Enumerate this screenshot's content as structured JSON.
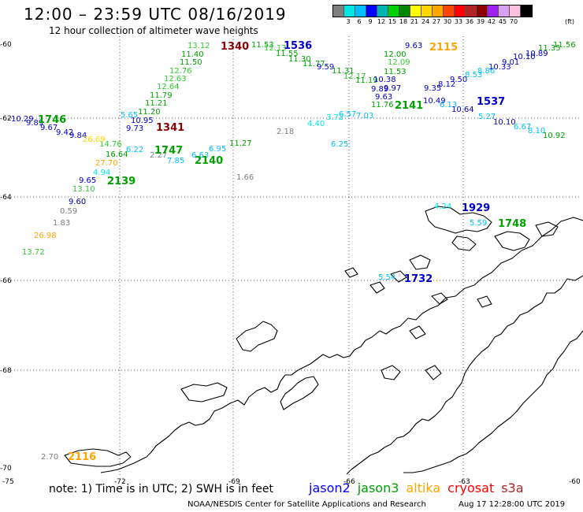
{
  "title": "12:00 – 23:59 UTC 08/16/2019",
  "subtitle": "12 hour collection of altimeter wave heights",
  "colorbar": {
    "colors": [
      "#7f7f7f",
      "#00e6e6",
      "#00bfff",
      "#0000ff",
      "#00b3b3",
      "#00d000",
      "#008800",
      "#ffff00",
      "#ffd700",
      "#ffa500",
      "#ff4500",
      "#ff0000",
      "#b22222",
      "#8b0000",
      "#a020f0",
      "#d8a0f0",
      "#ffc0e0",
      "#000000"
    ],
    "ticks": [
      "3",
      "6",
      "9",
      "12",
      "15",
      "18",
      "21",
      "24",
      "27",
      "30",
      "33",
      "36",
      "39",
      "42",
      "45",
      "70"
    ],
    "unit": "(ft)"
  },
  "axes": {
    "lat_labels": [
      "-60",
      "-62",
      "-64",
      "-66",
      "-68",
      "-70"
    ],
    "lon_labels": [
      "-75",
      "-72",
      "-69",
      "-66",
      "-63",
      "-60"
    ]
  },
  "observations": [
    {
      "t": "13.12",
      "c": "#2ecc2e"
    },
    {
      "t": "11.40",
      "c": "#00a000"
    },
    {
      "t": "11.50",
      "c": "#00a000"
    },
    {
      "t": "12.76",
      "c": "#2ecc2e"
    },
    {
      "t": "12.63",
      "c": "#2ecc2e"
    },
    {
      "t": "12.64",
      "c": "#2ecc2e"
    },
    {
      "t": "11.79",
      "c": "#00a000"
    },
    {
      "t": "11.21",
      "c": "#00a000"
    },
    {
      "t": "11.20",
      "c": "#00a000"
    },
    {
      "t": "10.95",
      "c": "#0000cc"
    },
    {
      "t": "9.73",
      "c": "#0000cc"
    },
    {
      "t": "5.65",
      "c": "#00bfff"
    },
    {
      "t": "6.22",
      "c": "#00bfff"
    },
    {
      "t": "14.76",
      "c": "#2ecc2e"
    },
    {
      "t": "16.64",
      "c": "#00a000"
    },
    {
      "t": "2.27",
      "c": "#7f7f7f"
    },
    {
      "t": "7.85",
      "c": "#00bfff"
    },
    {
      "t": "6.63",
      "c": "#00bfff"
    },
    {
      "t": "6.95",
      "c": "#00bfff"
    },
    {
      "t": "11.27",
      "c": "#00a000"
    },
    {
      "t": "10.29",
      "c": "#0000cc"
    },
    {
      "t": "9.89",
      "c": "#0000cc"
    },
    {
      "t": "9.67",
      "c": "#0000cc"
    },
    {
      "t": "9.42",
      "c": "#0000cc"
    },
    {
      "t": "9.84",
      "c": "#0000cc"
    },
    {
      "t": "26.69",
      "c": "#ffd700"
    },
    {
      "t": "27.70",
      "c": "#ffa500"
    },
    {
      "t": "4.94",
      "c": "#00e6e6"
    },
    {
      "t": "9.65",
      "c": "#0000cc"
    },
    {
      "t": "13.10",
      "c": "#2ecc2e"
    },
    {
      "t": "9.60",
      "c": "#0000cc"
    },
    {
      "t": "0.59",
      "c": "#7f7f7f"
    },
    {
      "t": "1.83",
      "c": "#7f7f7f"
    },
    {
      "t": "26.98",
      "c": "#ffa500"
    },
    {
      "t": "13.72",
      "c": "#2ecc2e"
    },
    {
      "t": "11.53",
      "c": "#00a000"
    },
    {
      "t": "12.13",
      "c": "#2ecc2e"
    },
    {
      "t": "11.55",
      "c": "#00a000"
    },
    {
      "t": "11.30",
      "c": "#00a000"
    },
    {
      "t": "11.77",
      "c": "#00a000"
    },
    {
      "t": "9.59",
      "c": "#0000cc"
    },
    {
      "t": "11.31",
      "c": "#00a000"
    },
    {
      "t": "12.17",
      "c": "#2ecc2e"
    },
    {
      "t": "11.19",
      "c": "#00a000"
    },
    {
      "t": "10.38",
      "c": "#0000cc"
    },
    {
      "t": "9.89",
      "c": "#0000cc"
    },
    {
      "t": "9.97",
      "c": "#0000cc"
    },
    {
      "t": "9.63",
      "c": "#0000cc"
    },
    {
      "t": "11.76",
      "c": "#00a000"
    },
    {
      "t": "6.57",
      "c": "#00bfff"
    },
    {
      "t": "7.03",
      "c": "#00bfff"
    },
    {
      "t": "3.72",
      "c": "#00e6e6"
    },
    {
      "t": "4.40",
      "c": "#00e6e6"
    },
    {
      "t": "2.18",
      "c": "#7f7f7f"
    },
    {
      "t": "1.66",
      "c": "#7f7f7f"
    },
    {
      "t": "6.25",
      "c": "#00bfff"
    },
    {
      "t": "9.63",
      "c": "#0000cc"
    },
    {
      "t": "12.00",
      "c": "#00a000"
    },
    {
      "t": "12.09",
      "c": "#2ecc2e"
    },
    {
      "t": "11.53",
      "c": "#00a000"
    },
    {
      "t": "9.35",
      "c": "#0000cc"
    },
    {
      "t": "8.12",
      "c": "#0000cc"
    },
    {
      "t": "9.50",
      "c": "#0000cc"
    },
    {
      "t": "8.53",
      "c": "#00bfff"
    },
    {
      "t": "8.86",
      "c": "#00bfff"
    },
    {
      "t": "10.33",
      "c": "#0000cc"
    },
    {
      "t": "9.01",
      "c": "#0000cc"
    },
    {
      "t": "10.10",
      "c": "#0000cc"
    },
    {
      "t": "10.89",
      "c": "#0000cc"
    },
    {
      "t": "11.35",
      "c": "#00a000"
    },
    {
      "t": "11.56",
      "c": "#00a000"
    },
    {
      "t": "10.49",
      "c": "#0000cc"
    },
    {
      "t": "6.13",
      "c": "#00bfff"
    },
    {
      "t": "10.64",
      "c": "#0000cc"
    },
    {
      "t": "5.27",
      "c": "#00bfff"
    },
    {
      "t": "10.10",
      "c": "#0000cc"
    },
    {
      "t": "6.67",
      "c": "#00bfff"
    },
    {
      "t": "8.10",
      "c": "#00bfff"
    },
    {
      "t": "10.92",
      "c": "#00a000"
    },
    {
      "t": "4.24",
      "c": "#00e6e6"
    },
    {
      "t": "5.59",
      "c": "#00bfff"
    },
    {
      "t": "5.54",
      "c": "#00bfff"
    },
    {
      "t": "2.70",
      "c": "#7f7f7f"
    }
  ],
  "passes": [
    {
      "t": "1340",
      "c": "#8b0000"
    },
    {
      "t": "1536",
      "c": "#0000cc"
    },
    {
      "t": "2115",
      "c": "#ffa500"
    },
    {
      "t": "1746",
      "c": "#00a000"
    },
    {
      "t": "1341",
      "c": "#8b0000"
    },
    {
      "t": "1747",
      "c": "#00a000"
    },
    {
      "t": "2140",
      "c": "#00a000"
    },
    {
      "t": "2139",
      "c": "#00a000"
    },
    {
      "t": "2141",
      "c": "#00a000"
    },
    {
      "t": "1537",
      "c": "#0000cc"
    },
    {
      "t": "1929",
      "c": "#0000cc"
    },
    {
      "t": "1748",
      "c": "#00a000"
    },
    {
      "t": "1732",
      "c": "#0000cc"
    },
    {
      "t": "2116",
      "c": "#ffa500"
    }
  ],
  "footer": {
    "note": "note: 1) Time is in UTC; 2) SWH is in feet",
    "satellites": [
      {
        "name": "jason2",
        "color": "#0000ff"
      },
      {
        "name": "jason3",
        "color": "#00a000"
      },
      {
        "name": "altika",
        "color": "#ffa500"
      },
      {
        "name": "cryosat",
        "color": "#ff0000"
      },
      {
        "name": "s3a",
        "color": "#b22222"
      }
    ],
    "credit": "NOAA/NESDIS Center for Satellite Applications and Research",
    "timestamp": "Aug 17 12:28:00 UTC 2019"
  }
}
